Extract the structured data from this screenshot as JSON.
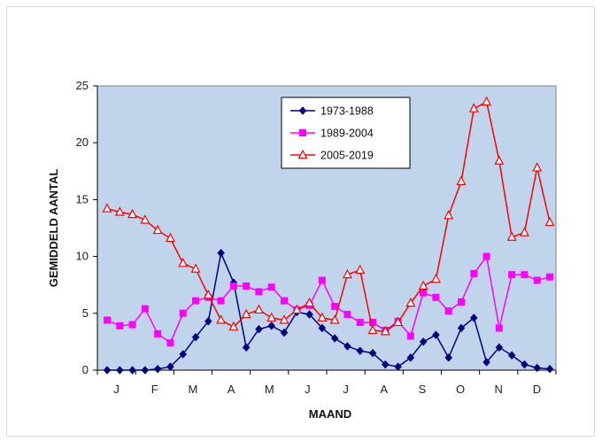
{
  "chart_data": {
    "type": "line",
    "xlabel": "MAAND",
    "ylabel": "GEMIDDELD AANTAL",
    "ylim": [
      0,
      25
    ],
    "yticks": [
      0,
      5,
      10,
      15,
      20,
      25
    ],
    "xlim": [
      0,
      35
    ],
    "x_tick_labels": [
      "J",
      "F",
      "M",
      "A",
      "M",
      "J",
      "J",
      "A",
      "S",
      "O",
      "N",
      "D"
    ],
    "x": [
      1,
      2,
      3,
      4,
      5,
      6,
      7,
      8,
      9,
      10,
      11,
      12,
      13,
      14,
      15,
      16,
      17,
      18,
      19,
      20,
      21,
      22,
      23,
      24,
      25,
      26,
      27,
      28,
      29,
      30,
      31,
      32,
      33,
      34,
      35,
      36
    ],
    "grid": false,
    "legend_position": "top-center",
    "plot_background": "#c0d5ec",
    "series": [
      {
        "name": "1973-1988",
        "color": "#000080",
        "marker": "diamond",
        "values": [
          0,
          0,
          0,
          0,
          0.1,
          0.3,
          1.4,
          2.9,
          4.3,
          10.3,
          7.7,
          2.0,
          3.6,
          3.9,
          3.3,
          5.1,
          4.9,
          3.7,
          2.8,
          2.1,
          1.7,
          1.5,
          0.5,
          0.3,
          1.1,
          2.5,
          3.1,
          1.1,
          3.7,
          4.6,
          0.7,
          2.0,
          1.3,
          0.5,
          0.2,
          0.1
        ]
      },
      {
        "name": "1989-2004",
        "color": "#ff00ff",
        "marker": "square",
        "values": [
          4.4,
          3.9,
          4.0,
          5.4,
          3.2,
          2.4,
          5.0,
          6.1,
          6.4,
          6.1,
          7.4,
          7.4,
          6.9,
          7.3,
          6.1,
          5.3,
          5.7,
          7.9,
          5.6,
          4.9,
          4.2,
          4.2,
          3.5,
          4.3,
          3.0,
          6.8,
          6.4,
          5.2,
          6.0,
          8.5,
          10.0,
          3.7,
          8.4,
          8.4,
          7.9,
          8.2
        ]
      },
      {
        "name": "2005-2019",
        "color": "#ff0000",
        "marker": "triangle-open",
        "values": [
          14.2,
          13.9,
          13.7,
          13.2,
          12.3,
          11.6,
          9.4,
          8.9,
          6.6,
          4.4,
          3.8,
          4.9,
          5.3,
          4.6,
          4.4,
          5.3,
          5.9,
          4.6,
          4.4,
          8.4,
          8.8,
          3.5,
          3.4,
          4.2,
          5.9,
          7.4,
          8.0,
          13.6,
          16.6,
          23.0,
          23.6,
          18.4,
          11.7,
          12.1,
          17.8,
          13.0
        ]
      }
    ]
  }
}
